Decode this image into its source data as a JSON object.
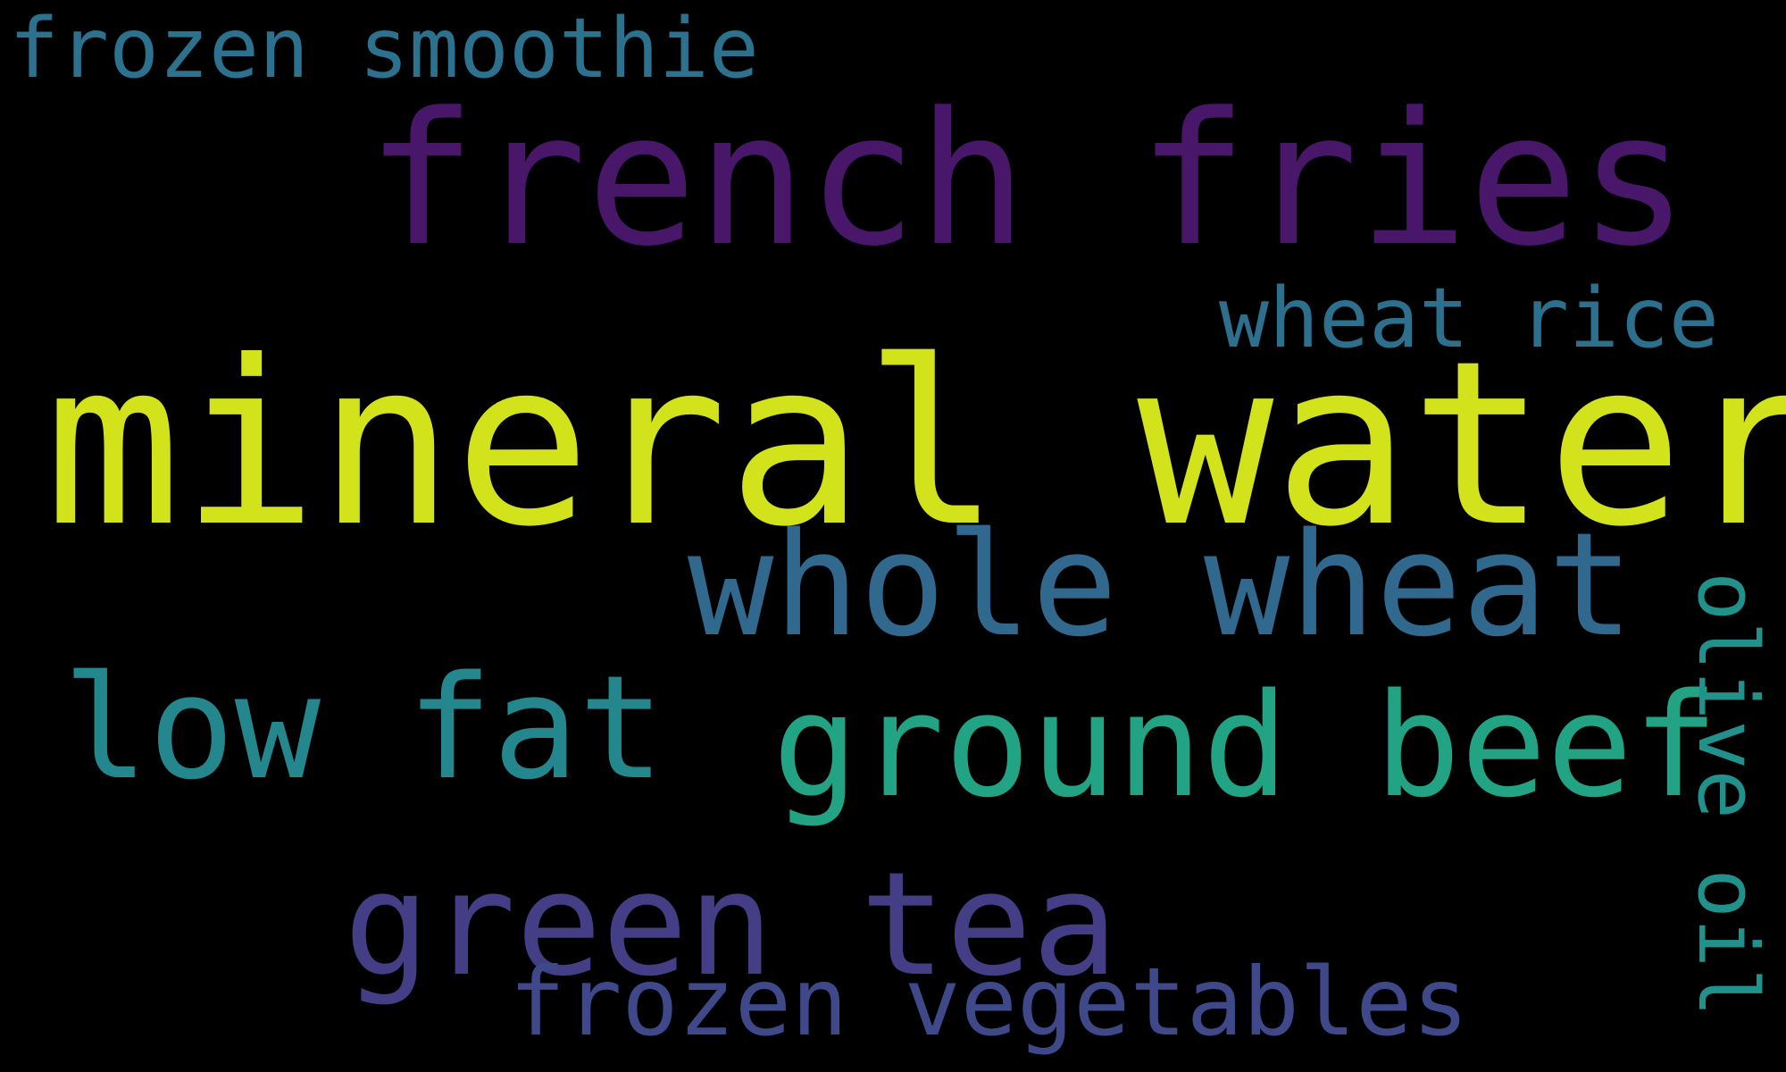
{
  "background_color": "#000000",
  "words": [
    {
      "text": "mineral water",
      "color": "#d2e21b"
    },
    {
      "text": "french fries",
      "color": "#481769"
    },
    {
      "text": "whole wheat",
      "color": "#31688e"
    },
    {
      "text": "ground beef",
      "color": "#22a384"
    },
    {
      "text": "green tea",
      "color": "#433e85"
    },
    {
      "text": "low fat",
      "color": "#24878e"
    },
    {
      "text": "frozen vegetables",
      "color": "#3f4889"
    },
    {
      "text": "frozen smoothie",
      "color": "#2c728e"
    },
    {
      "text": "wheat rice",
      "color": "#2d708e"
    },
    {
      "text": "olive oil",
      "color": "#21918c"
    }
  ]
}
